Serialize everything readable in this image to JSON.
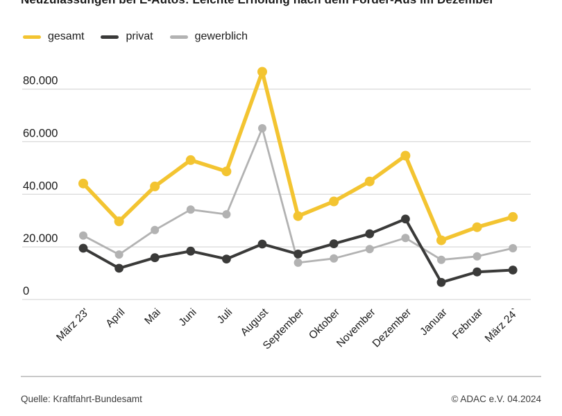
{
  "chart_data": {
    "type": "line",
    "title": "Neuzulassungen bei E-Autos: Leichte Erholung nach dem Förder-Aus im Dezember",
    "xlabel": "",
    "ylabel": "",
    "categories": [
      "März 23'",
      "April",
      "Mai",
      "Juni",
      "Juli",
      "August",
      "September",
      "Oktober",
      "November",
      "Dezember",
      "Januar",
      "Februar",
      "März 24`"
    ],
    "series": [
      {
        "name": "gesamt",
        "color": "#f3c431",
        "values": [
          44100,
          29700,
          43000,
          53000,
          48700,
          86600,
          31700,
          37300,
          44900,
          54700,
          22500,
          27500,
          31400
        ]
      },
      {
        "name": "privat",
        "color": "#3a3a39",
        "values": [
          19500,
          11900,
          15900,
          18400,
          15400,
          21100,
          17300,
          21200,
          25000,
          30600,
          6500,
          10500,
          11200
        ]
      },
      {
        "name": "gewerblich",
        "color": "#b2b2b2",
        "values": [
          24300,
          17100,
          26400,
          34200,
          32400,
          65100,
          14000,
          15600,
          19200,
          23400,
          15100,
          16400,
          19500
        ]
      }
    ],
    "y_ticks": [
      0,
      20000,
      40000,
      60000,
      80000
    ],
    "y_tick_labels": [
      "0",
      "20.000",
      "40.000",
      "60.000",
      "80.000"
    ],
    "ylim": [
      0,
      87500
    ],
    "grid": true,
    "gridline_color": "#d9d9d9",
    "legend_position": "top-left"
  },
  "footer": {
    "source": "Quelle: Kraftfahrt-Bundesamt",
    "copyright": "© ADAC e.V. 04.2024"
  }
}
